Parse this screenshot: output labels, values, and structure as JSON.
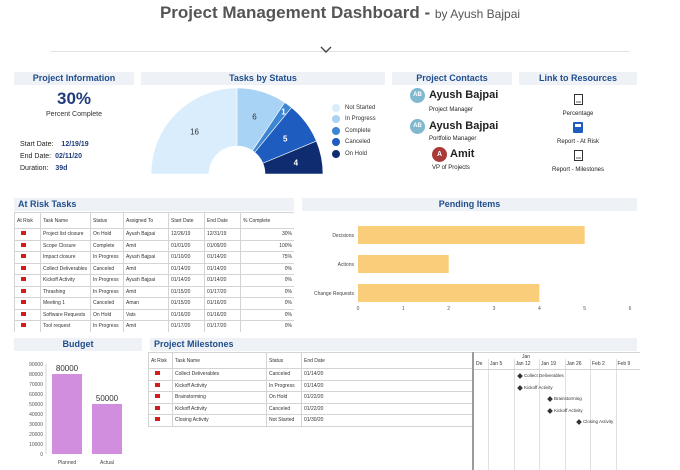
{
  "header": {
    "title": "Project Management Dashboard - ",
    "subtitle": "by Ayush Bajpai"
  },
  "project_info": {
    "heading": "Project Information",
    "percent": "30%",
    "percent_label": "Percent Complete",
    "start_label": "Start Date:",
    "start_value": "12/19/19",
    "end_label": "End Date:",
    "end_value": "02/11/20",
    "duration_label": "Duration:",
    "duration_value": "39d"
  },
  "tasks_by_status": {
    "heading": "Tasks by Status",
    "legend": [
      "Not Started",
      "In Progress",
      "Complete",
      "Canceled",
      "On Hold"
    ],
    "colors": [
      "#daedfc",
      "#a8d3f4",
      "#3d86d1",
      "#1e5dbf",
      "#0e2c6f"
    ],
    "chart_data": {
      "type": "pie",
      "categories": [
        "Not Started",
        "In Progress",
        "Complete",
        "Canceled",
        "On Hold"
      ],
      "values": [
        16,
        6,
        1,
        5,
        4
      ]
    }
  },
  "contacts": {
    "heading": "Project Contacts",
    "people": [
      {
        "initials": "AB",
        "name": "Ayush Bajpai",
        "role": "Project Manager",
        "color": "#7fb8cf"
      },
      {
        "initials": "AB",
        "name": "Ayush Bajpai",
        "role": "Portfolio Manager",
        "color": "#7fb8cf"
      },
      {
        "initials": "A",
        "name": "Amit",
        "role": "VP of Projects",
        "color": "#a93a3a"
      }
    ]
  },
  "resources": {
    "heading": "Link to Resources",
    "links": [
      "Percentage",
      "Report - At Risk",
      "Report - Milestones"
    ]
  },
  "at_risk": {
    "heading": "At Risk Tasks",
    "columns": [
      "At Risk",
      "Task Name",
      "Status",
      "Assigned To",
      "Start Date",
      "End Date",
      "% Complete"
    ],
    "rows": [
      [
        "Project list closure",
        "On Hold",
        "Ayush Bajpai",
        "12/26/19",
        "12/31/19",
        "30%"
      ],
      [
        "Scope Closure",
        "Complete",
        "Amit",
        "01/01/20",
        "01/09/20",
        "100%"
      ],
      [
        "Impact closure",
        "In Progress",
        "Ayush Bajpai",
        "01/10/20",
        "01/14/20",
        "75%"
      ],
      [
        "Collect Deliverables",
        "Canceled",
        "Amit",
        "01/14/20",
        "01/14/20",
        "0%"
      ],
      [
        "Kickoff Activity",
        "In Progress",
        "Ayush Bajpai",
        "01/14/20",
        "01/14/20",
        "0%"
      ],
      [
        "Thrashing",
        "In Progress",
        "Amit",
        "01/15/20",
        "01/17/20",
        "0%"
      ],
      [
        "Meeting 1",
        "Canceled",
        "Aman",
        "01/15/20",
        "01/16/20",
        "0%"
      ],
      [
        "Software Requests",
        "On Hold",
        "Vats",
        "01/16/20",
        "01/16/20",
        "0%"
      ],
      [
        "Tool request",
        "In Progress",
        "Amit",
        "01/17/20",
        "01/17/20",
        "0%"
      ]
    ]
  },
  "pending": {
    "heading": "Pending Items",
    "chart_data": {
      "type": "bar",
      "orientation": "horizontal",
      "categories": [
        "Decisions",
        "Actions",
        "Change Requests"
      ],
      "values": [
        5,
        2,
        4
      ],
      "xlim": [
        0,
        6
      ],
      "ticks": [
        "0",
        "1",
        "2",
        "3",
        "4",
        "5",
        "6"
      ],
      "color": "#f9cd7a"
    }
  },
  "budget": {
    "heading": "Budget",
    "chart_data": {
      "type": "bar",
      "categories": [
        "Planned",
        "Actual"
      ],
      "values": [
        80000,
        50000
      ],
      "data_labels": [
        "80000",
        "50000"
      ],
      "ylim": [
        0,
        90000
      ],
      "ticks": [
        "0",
        "10000",
        "20000",
        "30000",
        "40000",
        "50000",
        "60000",
        "70000",
        "80000",
        "90000"
      ],
      "color": "#d28ede"
    }
  },
  "milestones": {
    "heading": "Project Milestones",
    "columns": [
      "At Risk",
      "Task Name",
      "Status",
      "End Date"
    ],
    "rows": [
      [
        "Collect Deliverables",
        "Canceled",
        "01/14/20"
      ],
      [
        "Kickoff Activity",
        "In Progress",
        "01/14/20"
      ],
      [
        "Brainstorming",
        "On Hold",
        "01/22/20"
      ],
      [
        "Kickoff Activity",
        "Canceled",
        "01/22/20"
      ],
      [
        "Closing Activity",
        "Not Started",
        "01/30/20"
      ]
    ],
    "gantt": {
      "month": "Jan",
      "weeks": [
        "De",
        "Jan 5",
        "Jan 12",
        "Jan 19",
        "Jan 26",
        "Feb 2",
        "Feb 9"
      ],
      "labels": [
        "Collect Deliverables",
        "Kickoff Activity",
        "Brainstorming",
        "Kickoff Activity",
        "Closing Activity"
      ]
    }
  }
}
